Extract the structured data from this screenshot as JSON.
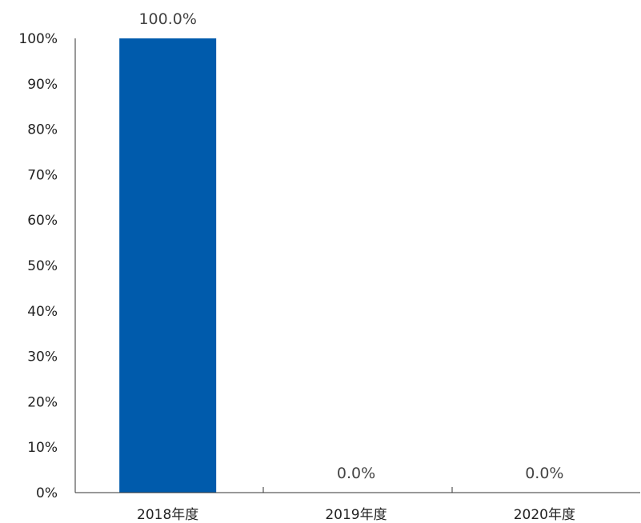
{
  "chart_data": {
    "type": "bar",
    "categories": [
      "2018年度",
      "2019年度",
      "2020年度"
    ],
    "values": [
      100.0,
      0.0,
      0.0
    ],
    "data_labels": [
      "100.0%",
      "0.0%",
      "0.0%"
    ],
    "y_ticks": [
      "0%",
      "10%",
      "20%",
      "30%",
      "40%",
      "50%",
      "60%",
      "70%",
      "80%",
      "90%",
      "100%"
    ],
    "ylim": [
      0,
      100
    ],
    "grid": false,
    "legend": "none",
    "title": "",
    "xlabel": "",
    "ylabel": "",
    "bar_color": "#005bac"
  }
}
